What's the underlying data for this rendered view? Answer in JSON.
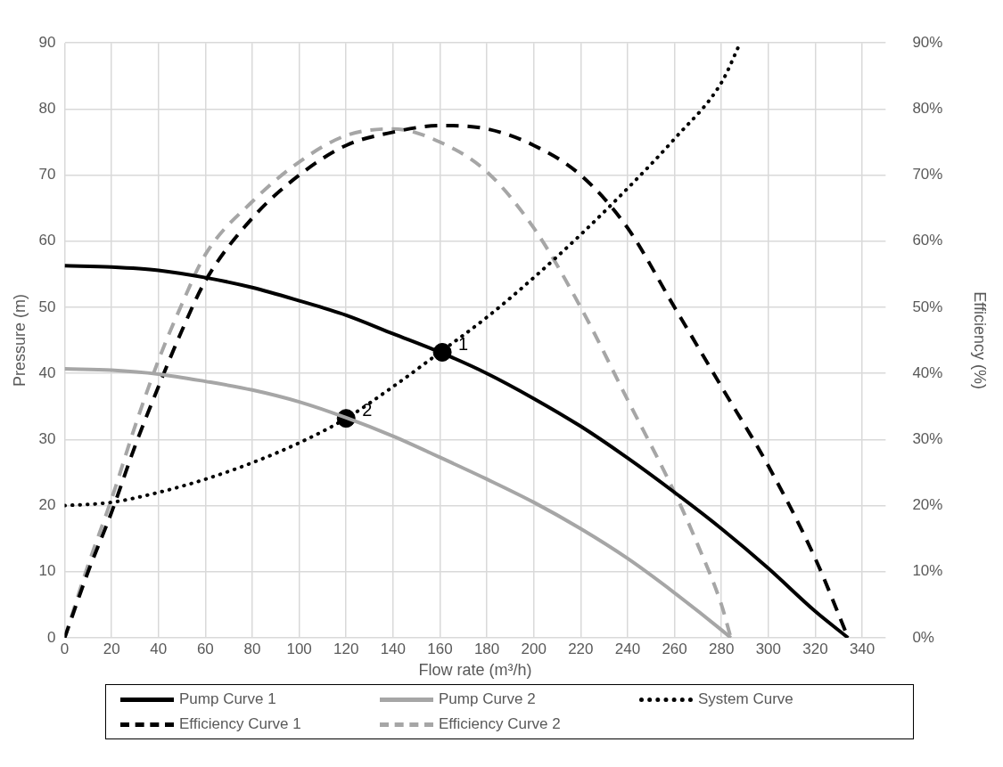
{
  "chart_data": {
    "type": "line",
    "xlabel": "Flow rate (m³/h)",
    "ylabel": "Pressure (m)",
    "y2label": "Efficiency (%)",
    "xlim": [
      0,
      350
    ],
    "xticks": [
      0,
      20,
      40,
      60,
      80,
      100,
      120,
      140,
      160,
      180,
      200,
      220,
      240,
      260,
      280,
      300,
      320,
      340
    ],
    "ylim": [
      0,
      90
    ],
    "yticks": [
      0,
      10,
      20,
      30,
      40,
      50,
      60,
      70,
      80,
      90
    ],
    "y2lim": [
      0,
      90
    ],
    "y2ticks": [
      {
        "value": 0,
        "label": "0%"
      },
      {
        "value": 10,
        "label": "10%"
      },
      {
        "value": 20,
        "label": "20%"
      },
      {
        "value": 30,
        "label": "30%"
      },
      {
        "value": 40,
        "label": "40%"
      },
      {
        "value": 50,
        "label": "50%"
      },
      {
        "value": 60,
        "label": "60%"
      },
      {
        "value": 70,
        "label": "70%"
      },
      {
        "value": 80,
        "label": "80%"
      },
      {
        "value": 90,
        "label": "90%"
      }
    ],
    "grid": true,
    "legend": "bottom",
    "marker": "none",
    "series": [
      {
        "name": "Pump Curve 1",
        "color": "#000000",
        "line_style": "solid",
        "x": [
          0,
          20,
          40,
          60,
          80,
          100,
          120,
          140,
          160,
          180,
          200,
          220,
          240,
          260,
          280,
          300,
          320,
          334
        ],
        "values": [
          56.3,
          56.1,
          55.6,
          54.5,
          53,
          51,
          48.8,
          46,
          43.2,
          40,
          36.2,
          32,
          27.2,
          22,
          16.5,
          10.5,
          4,
          0
        ]
      },
      {
        "name": "Pump Curve 2",
        "color": "#a6a6a6",
        "line_style": "solid",
        "x": [
          0,
          20,
          40,
          60,
          80,
          100,
          120,
          140,
          160,
          180,
          200,
          220,
          240,
          260,
          280,
          284
        ],
        "values": [
          40.7,
          40.5,
          39.9,
          38.8,
          37.5,
          35.7,
          33.3,
          30.5,
          27.3,
          24,
          20.5,
          16.5,
          12,
          6.8,
          1.2,
          0
        ]
      },
      {
        "name": "System Curve",
        "color": "#000000",
        "line_style": "dotted",
        "x": [
          0,
          20,
          40,
          60,
          80,
          100,
          120,
          140,
          160,
          180,
          200,
          220,
          240,
          260,
          280,
          288
        ],
        "values": [
          20,
          20.5,
          22,
          24,
          26.5,
          29.5,
          33.2,
          38,
          43.2,
          48.5,
          54.5,
          61,
          68,
          75.5,
          84,
          90
        ]
      },
      {
        "name": "Efficiency Curve 1",
        "color": "#000000",
        "line_style": "dashed",
        "axis": "y2",
        "x": [
          0,
          10,
          20,
          30,
          40,
          50,
          60,
          80,
          100,
          120,
          140,
          160,
          180,
          200,
          220,
          240,
          260,
          280,
          300,
          320,
          334
        ],
        "values": [
          0,
          10,
          19,
          29,
          38,
          46.5,
          54,
          63.5,
          70,
          74.5,
          76.5,
          77.5,
          77,
          74.5,
          70,
          62,
          50,
          38,
          26,
          12,
          0
        ]
      },
      {
        "name": "Efficiency Curve 2",
        "color": "#a6a6a6",
        "line_style": "dashed",
        "axis": "y2",
        "x": [
          0,
          10,
          20,
          30,
          40,
          50,
          60,
          80,
          100,
          120,
          140,
          160,
          180,
          200,
          220,
          240,
          260,
          270,
          280,
          284
        ],
        "values": [
          0,
          11,
          21,
          32,
          42,
          50.5,
          58,
          66,
          72,
          76,
          77,
          75,
          70.5,
          62,
          50,
          36,
          22,
          14,
          5,
          0
        ]
      },
      {
        "type": "scatter",
        "color": "#000000",
        "marker": "circle",
        "x": [
          161,
          120
        ],
        "values": [
          43.2,
          33.2
        ]
      }
    ],
    "annotations": [
      {
        "text": "1",
        "x": 161,
        "y": 43.2
      },
      {
        "text": "2",
        "x": 120,
        "y": 33.2
      }
    ]
  }
}
